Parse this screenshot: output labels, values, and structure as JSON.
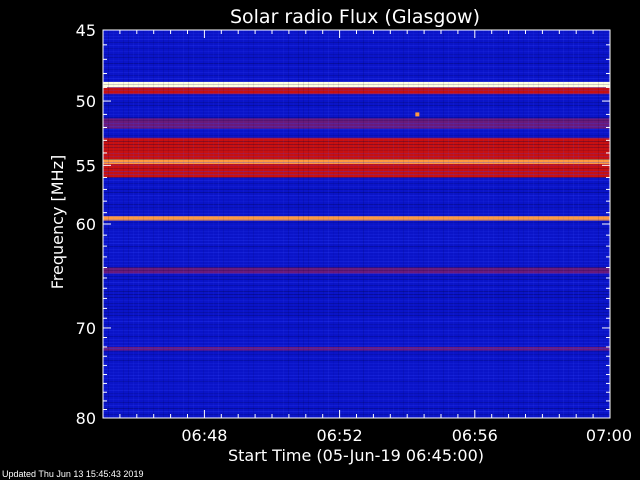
{
  "chart_data": {
    "type": "heatmap",
    "title": "Solar radio Flux (Glasgow)",
    "xlabel": "Start Time (05-Jun-19 06:45:00)",
    "ylabel": "Frequency [MHz]",
    "x_range_minutes": [
      0,
      15
    ],
    "x_ticks": [
      {
        "minute": 3,
        "label": "06:48"
      },
      {
        "minute": 7,
        "label": "06:52"
      },
      {
        "minute": 11,
        "label": "06:56"
      },
      {
        "minute": 15,
        "label": "07:00"
      }
    ],
    "y_scale": "log",
    "y_range_mhz": [
      45,
      80
    ],
    "y_ticks": [
      45,
      50,
      55,
      60,
      70,
      80
    ],
    "colors": {
      "low": "#0a14c8",
      "mid": "#6a1a7a",
      "high": "#c81010",
      "peak": "#ff9a40",
      "max": "#ffffe0"
    },
    "bands": [
      {
        "freq_start": 45.0,
        "freq_end": 48.6,
        "level": "low"
      },
      {
        "freq_start": 48.6,
        "freq_end": 49.0,
        "level": "max"
      },
      {
        "freq_start": 49.0,
        "freq_end": 49.5,
        "level": "high"
      },
      {
        "freq_start": 49.5,
        "freq_end": 51.3,
        "level": "low"
      },
      {
        "freq_start": 51.3,
        "freq_end": 52.1,
        "level": "mid"
      },
      {
        "freq_start": 52.1,
        "freq_end": 52.8,
        "level": "low"
      },
      {
        "freq_start": 52.8,
        "freq_end": 54.5,
        "level": "high"
      },
      {
        "freq_start": 54.5,
        "freq_end": 54.9,
        "level": "peak"
      },
      {
        "freq_start": 54.9,
        "freq_end": 56.0,
        "level": "high"
      },
      {
        "freq_start": 56.0,
        "freq_end": 59.3,
        "level": "low"
      },
      {
        "freq_start": 59.3,
        "freq_end": 59.7,
        "level": "peak"
      },
      {
        "freq_start": 59.7,
        "freq_end": 64.0,
        "level": "low"
      },
      {
        "freq_start": 64.0,
        "freq_end": 64.6,
        "level": "mid"
      },
      {
        "freq_start": 64.6,
        "freq_end": 72.0,
        "level": "low"
      },
      {
        "freq_start": 72.0,
        "freq_end": 72.4,
        "level": "mid"
      },
      {
        "freq_start": 72.4,
        "freq_end": 80.0,
        "level": "low"
      }
    ],
    "annotations": [
      {
        "minute": 9.3,
        "freq": 51.0,
        "level": "peak"
      }
    ]
  },
  "footer": {
    "updated": "Updated Thu Jun 13 15:45:43 2019"
  }
}
